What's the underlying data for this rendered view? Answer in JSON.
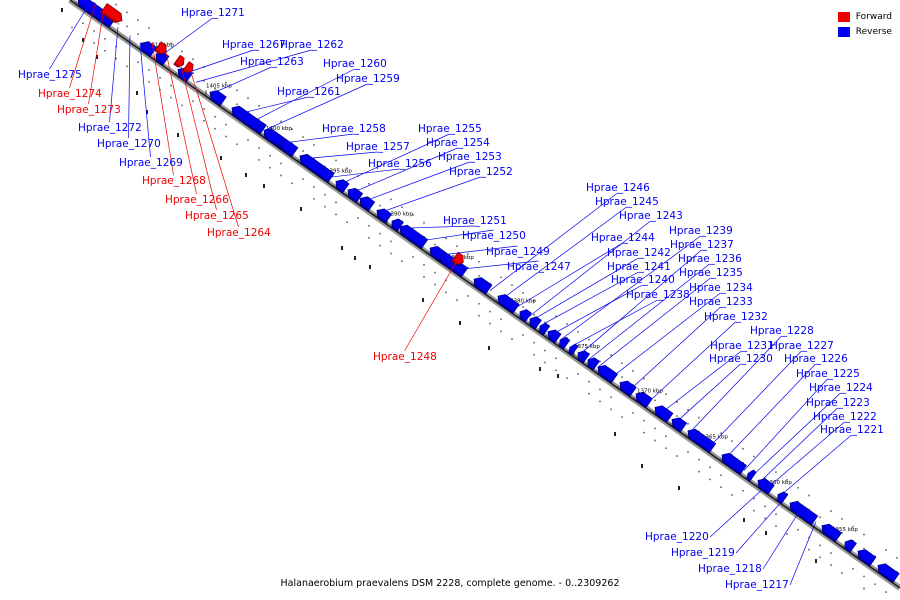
{
  "legend": {
    "forward_label": "Forward",
    "reverse_label": "Reverse",
    "forward_color": "#ee0000",
    "reverse_color": "#0000ee"
  },
  "footer": "Halanaerobium praevalens DSM 2228, complete genome. - 0..2309262",
  "ticks": [
    "1410 kbp",
    "1405 kbp",
    "1400 kbp",
    "1395 kbp",
    "1390 kbp",
    "1385 kbp",
    "1380 kbp",
    "1375 kbp",
    "1370 kbp",
    "1365 kbp",
    "1360 kbp",
    "1355 kbp"
  ],
  "labels": [
    {
      "text": "Hprae_1275",
      "strand": "reverse"
    },
    {
      "text": "Hprae_1274",
      "strand": "forward"
    },
    {
      "text": "Hprae_1273",
      "strand": "forward"
    },
    {
      "text": "Hprae_1272",
      "strand": "reverse"
    },
    {
      "text": "Hprae_1271",
      "strand": "reverse"
    },
    {
      "text": "Hprae_1270",
      "strand": "reverse"
    },
    {
      "text": "Hprae_1269",
      "strand": "reverse"
    },
    {
      "text": "Hprae_1268",
      "strand": "forward"
    },
    {
      "text": "Hprae_1267",
      "strand": "reverse"
    },
    {
      "text": "Hprae_1266",
      "strand": "forward"
    },
    {
      "text": "Hprae_1265",
      "strand": "forward"
    },
    {
      "text": "Hprae_1264",
      "strand": "forward"
    },
    {
      "text": "Hprae_1263",
      "strand": "reverse"
    },
    {
      "text": "Hprae_1262",
      "strand": "reverse"
    },
    {
      "text": "Hprae_1261",
      "strand": "reverse"
    },
    {
      "text": "Hprae_1260",
      "strand": "reverse"
    },
    {
      "text": "Hprae_1259",
      "strand": "reverse"
    },
    {
      "text": "Hprae_1258",
      "strand": "reverse"
    },
    {
      "text": "Hprae_1257",
      "strand": "reverse"
    },
    {
      "text": "Hprae_1256",
      "strand": "reverse"
    },
    {
      "text": "Hprae_1255",
      "strand": "reverse"
    },
    {
      "text": "Hprae_1254",
      "strand": "reverse"
    },
    {
      "text": "Hprae_1253",
      "strand": "reverse"
    },
    {
      "text": "Hprae_1252",
      "strand": "reverse"
    },
    {
      "text": "Hprae_1251",
      "strand": "reverse"
    },
    {
      "text": "Hprae_1250",
      "strand": "reverse"
    },
    {
      "text": "Hprae_1249",
      "strand": "reverse"
    },
    {
      "text": "Hprae_1248",
      "strand": "forward"
    },
    {
      "text": "Hprae_1247",
      "strand": "reverse"
    },
    {
      "text": "Hprae_1246",
      "strand": "reverse"
    },
    {
      "text": "Hprae_1245",
      "strand": "reverse"
    },
    {
      "text": "Hprae_1244",
      "strand": "reverse"
    },
    {
      "text": "Hprae_1243",
      "strand": "reverse"
    },
    {
      "text": "Hprae_1242",
      "strand": "reverse"
    },
    {
      "text": "Hprae_1241",
      "strand": "reverse"
    },
    {
      "text": "Hprae_1240",
      "strand": "reverse"
    },
    {
      "text": "Hprae_1239",
      "strand": "reverse"
    },
    {
      "text": "Hprae_1238",
      "strand": "reverse"
    },
    {
      "text": "Hprae_1237",
      "strand": "reverse"
    },
    {
      "text": "Hprae_1236",
      "strand": "reverse"
    },
    {
      "text": "Hprae_1235",
      "strand": "reverse"
    },
    {
      "text": "Hprae_1234",
      "strand": "reverse"
    },
    {
      "text": "Hprae_1233",
      "strand": "reverse"
    },
    {
      "text": "Hprae_1232",
      "strand": "reverse"
    },
    {
      "text": "Hprae_1231",
      "strand": "reverse"
    },
    {
      "text": "Hprae_1230",
      "strand": "reverse"
    },
    {
      "text": "Hprae_1228",
      "strand": "reverse"
    },
    {
      "text": "Hprae_1227",
      "strand": "reverse"
    },
    {
      "text": "Hprae_1226",
      "strand": "reverse"
    },
    {
      "text": "Hprae_1225",
      "strand": "reverse"
    },
    {
      "text": "Hprae_1224",
      "strand": "reverse"
    },
    {
      "text": "Hprae_1223",
      "strand": "reverse"
    },
    {
      "text": "Hprae_1222",
      "strand": "reverse"
    },
    {
      "text": "Hprae_1221",
      "strand": "reverse"
    },
    {
      "text": "Hprae_1220",
      "strand": "reverse"
    },
    {
      "text": "Hprae_1219",
      "strand": "reverse"
    },
    {
      "text": "Hprae_1218",
      "strand": "reverse"
    },
    {
      "text": "Hprae_1217",
      "strand": "reverse"
    }
  ]
}
